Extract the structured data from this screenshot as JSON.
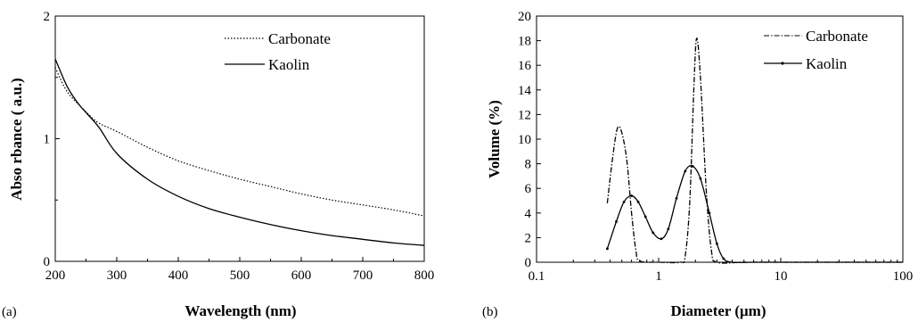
{
  "chart_data": [
    {
      "panel_label": "(a)",
      "type": "line",
      "xlabel": "Wavelength (nm)",
      "ylabel": "Abso rbance ( a.u.)",
      "xlim": [
        200,
        800
      ],
      "ylim": [
        0,
        2
      ],
      "xscale": "linear",
      "xticks": [
        "200",
        "300",
        "400",
        "500",
        "600",
        "700",
        "800"
      ],
      "yticks": [
        "0",
        "1",
        "2"
      ],
      "legend": "top-right",
      "grid": false,
      "series": [
        {
          "name": "Carbonate",
          "style": "dotted",
          "x": [
            200,
            220,
            250,
            270,
            300,
            350,
            400,
            450,
            500,
            550,
            600,
            650,
            700,
            750,
            800
          ],
          "y": [
            1.58,
            1.38,
            1.22,
            1.13,
            1.06,
            0.93,
            0.82,
            0.74,
            0.67,
            0.61,
            0.55,
            0.5,
            0.46,
            0.42,
            0.37
          ]
        },
        {
          "name": "Kaolin",
          "style": "solid",
          "x": [
            200,
            220,
            240,
            270,
            300,
            350,
            400,
            450,
            500,
            550,
            600,
            650,
            700,
            750,
            800
          ],
          "y": [
            1.65,
            1.42,
            1.27,
            1.1,
            0.88,
            0.67,
            0.53,
            0.43,
            0.36,
            0.3,
            0.25,
            0.21,
            0.18,
            0.15,
            0.13
          ]
        }
      ]
    },
    {
      "panel_label": "(b)",
      "type": "line",
      "xlabel": "Diameter (μm)",
      "ylabel": "Volume (%)",
      "xlim": [
        0.1,
        100
      ],
      "ylim": [
        0,
        20
      ],
      "xscale": "log",
      "xticks": [
        "0.1",
        "1",
        "10",
        "100"
      ],
      "yticks": [
        "0",
        "2",
        "4",
        "6",
        "8",
        "10",
        "12",
        "14",
        "16",
        "18",
        "20"
      ],
      "legend": "top-right",
      "grid": false,
      "series": [
        {
          "name": "Carbonate",
          "style": "dash-dot",
          "x": [
            0.38,
            0.42,
            0.46,
            0.5,
            0.55,
            0.6,
            0.65,
            0.7,
            1.0,
            1.5,
            1.65,
            1.8,
            1.95,
            2.05,
            2.2,
            2.45,
            2.7,
            3.0,
            5,
            10,
            30,
            100
          ],
          "y": [
            4.8,
            8.5,
            10.9,
            10.5,
            8.2,
            4.0,
            1.0,
            0.1,
            0,
            0,
            0.5,
            5.0,
            14.5,
            18.2,
            15.0,
            6.0,
            1.0,
            0,
            0,
            0,
            0,
            0
          ]
        },
        {
          "name": "Kaolin",
          "style": "solid-with-markers",
          "x": [
            0.38,
            0.45,
            0.52,
            0.6,
            0.68,
            0.78,
            0.9,
            1.05,
            1.2,
            1.4,
            1.65,
            1.9,
            2.2,
            2.6,
            3.0,
            3.4,
            4,
            6,
            10,
            20,
            50,
            100
          ],
          "y": [
            1.1,
            3.3,
            4.9,
            5.4,
            4.9,
            3.7,
            2.4,
            1.9,
            2.7,
            5.2,
            7.4,
            7.8,
            6.8,
            4.0,
            1.5,
            0.3,
            0,
            0,
            0,
            0,
            0,
            0
          ]
        }
      ]
    }
  ]
}
